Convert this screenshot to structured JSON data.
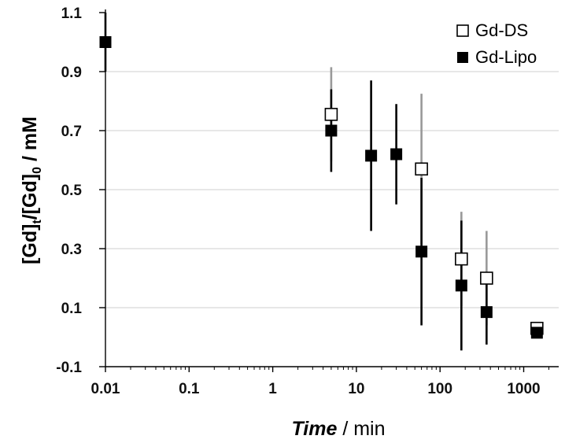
{
  "chart_data": {
    "type": "scatter",
    "xscale": "log",
    "xlim": [
      0.01,
      2000
    ],
    "ylim": [
      -0.1,
      1.1
    ],
    "xticks": [
      "0.01",
      "0.1",
      "1",
      "10",
      "100",
      "1000"
    ],
    "yticks": [
      "1.1",
      "0.9",
      "0.7",
      "0.5",
      "0.3",
      "0.1",
      "-0.1"
    ],
    "grid": true,
    "legend_position": "top-right",
    "xlabel": {
      "italic": "Time",
      "rest": " / min"
    },
    "ylabel": {
      "segments": [
        "[Gd]",
        "t",
        "/[Gd]",
        "0",
        "  / mM"
      ]
    },
    "series": [
      {
        "name": "Gd-DS",
        "marker": "open-square",
        "color": "#000000",
        "errorbar_color": "#999999",
        "points": [
          {
            "x": 5,
            "y": 0.755,
            "err": 0.16
          },
          {
            "x": 60,
            "y": 0.57,
            "err": 0.255
          },
          {
            "x": 180,
            "y": 0.265,
            "err": 0.16
          },
          {
            "x": 360,
            "y": 0.2,
            "err": 0.16
          },
          {
            "x": 1440,
            "y": 0.03,
            "err": 0.02
          }
        ]
      },
      {
        "name": "Gd-Lipo",
        "marker": "filled-square",
        "color": "#000000",
        "errorbar_color": "#000000",
        "points": [
          {
            "x": 0.01,
            "y": 1.0,
            "err": 0.1
          },
          {
            "x": 5,
            "y": 0.7,
            "err": 0.14
          },
          {
            "x": 15,
            "y": 0.615,
            "err": 0.255
          },
          {
            "x": 30,
            "y": 0.62,
            "err": 0.17
          },
          {
            "x": 60,
            "y": 0.29,
            "err": 0.25
          },
          {
            "x": 180,
            "y": 0.175,
            "err": 0.22
          },
          {
            "x": 360,
            "y": 0.085,
            "err": 0.11
          },
          {
            "x": 1440,
            "y": 0.015,
            "err": 0.01
          }
        ]
      }
    ]
  }
}
